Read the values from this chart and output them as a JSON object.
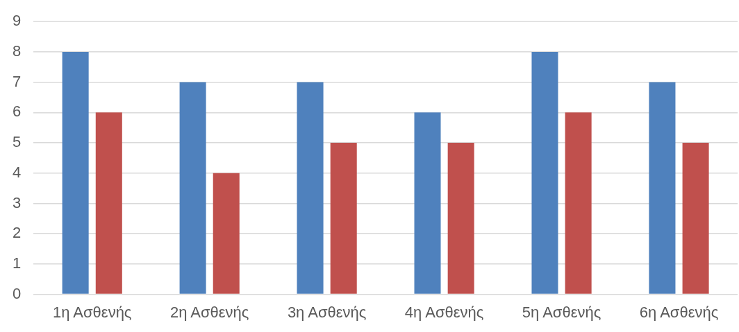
{
  "chart_data": {
    "type": "bar",
    "categories": [
      "1η Ασθενής",
      "2η Ασθενής",
      "3η Ασθενής",
      "4η Ασθενής",
      "5η Ασθενής",
      "6η Ασθενής"
    ],
    "series": [
      {
        "color": "#4f81bd",
        "values": [
          8,
          7,
          7,
          6,
          8,
          7
        ]
      },
      {
        "color": "#c0504d",
        "values": [
          6,
          4,
          5,
          5,
          6,
          5
        ]
      }
    ],
    "ylim": [
      0,
      9
    ],
    "yticks": [
      0,
      1,
      2,
      3,
      4,
      5,
      6,
      7,
      8,
      9
    ],
    "grid": "y",
    "legend": false
  }
}
